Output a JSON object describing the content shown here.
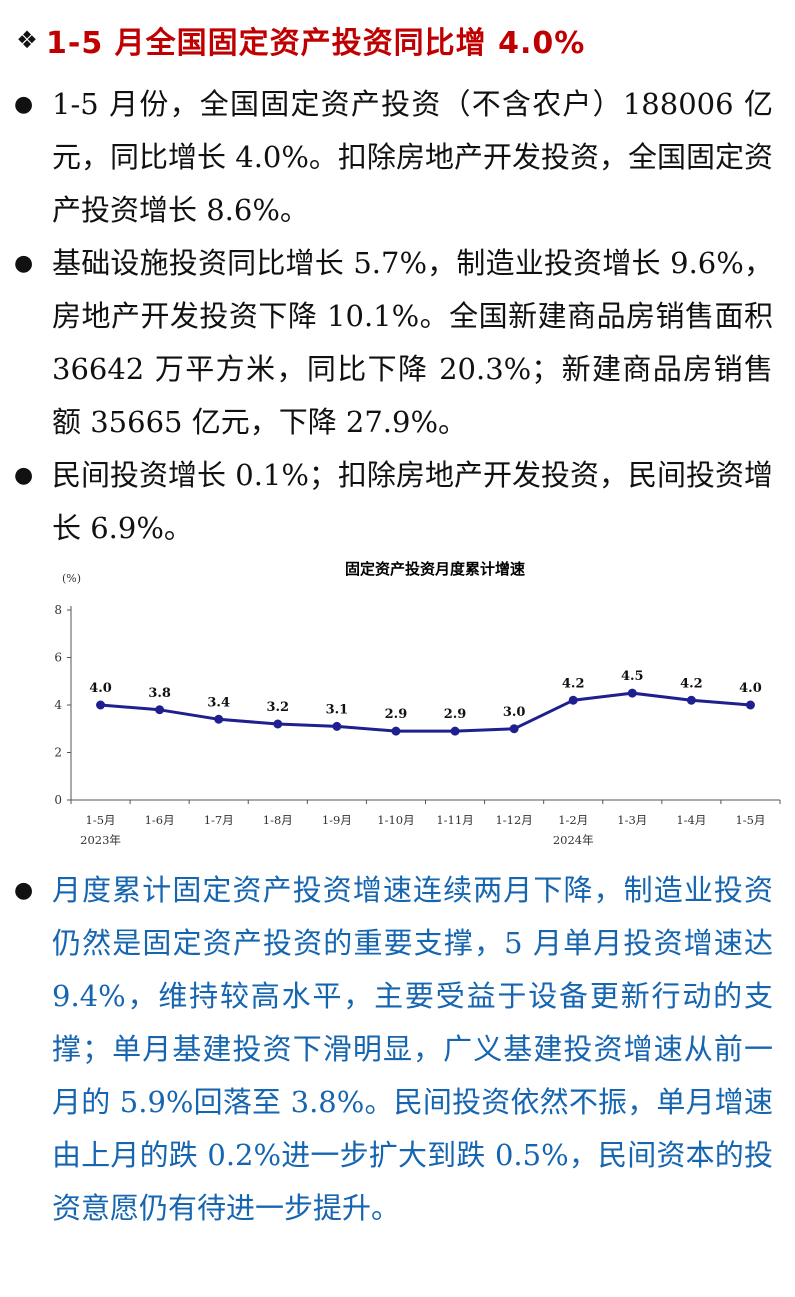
{
  "heading": {
    "mark": "❖",
    "text": "1-5 月全国固定资产投资同比增 4.0%"
  },
  "bullets_top": [
    {
      "text": "1-5 月份，全国固定资产投资（不含农户）188006 亿元，同比增长 4.0%。扣除房地产开发投资，全国固定资产投资增长 8.6%。"
    },
    {
      "text": "基础设施投资同比增长 5.7%，制造业投资增长 9.6%，房地产开发投资下降 10.1%。全国新建商品房销售面积 36642 万平方米，同比下降 20.3%；新建商品房销售额 35665 亿元，下降 27.9%。"
    },
    {
      "text": "民间投资增长 0.1%；扣除房地产开发投资，民间投资增长 6.9%。"
    }
  ],
  "bullets_bottom": [
    {
      "text": "月度累计固定资产投资增速连续两月下降，制造业投资仍然是固定资产投资的重要支撑，5 月单月投资增速达 9.4%，维持较高水平，主要受益于设备更新行动的支撑；单月基建投资下滑明显，广义基建投资增速从前一月的 5.9%回落至 3.8%。民间投资依然不振，单月增速由上月的跌 0.2%进一步扩大到跌 0.5%，民间资本的投资意愿仍有待进一步提升。"
    }
  ],
  "chart_data": {
    "type": "line",
    "title": "固定资产投资月度累计增速",
    "ylabel": "(%)",
    "ylim": [
      0,
      8
    ],
    "yticks": [
      0,
      2,
      4,
      6,
      8
    ],
    "categories": [
      "1-5月",
      "1-6月",
      "1-7月",
      "1-8月",
      "1-9月",
      "1-10月",
      "1-11月",
      "1-12月",
      "1-2月",
      "1-3月",
      "1-4月",
      "1-5月"
    ],
    "year_labels": [
      {
        "index": 0,
        "label": "2023年"
      },
      {
        "index": 8,
        "label": "2024年"
      }
    ],
    "series": [
      {
        "values": [
          4.0,
          3.8,
          3.4,
          3.2,
          3.1,
          2.9,
          2.9,
          3.0,
          4.2,
          4.5,
          4.2,
          4.0
        ]
      }
    ],
    "data_labels": [
      "4.0",
      "3.8",
      "3.4",
      "3.2",
      "3.1",
      "2.9",
      "2.9",
      "3.0",
      "4.2",
      "4.5",
      "4.2",
      "4.0"
    ],
    "grid": false,
    "line_color": "#1f1f8f"
  }
}
